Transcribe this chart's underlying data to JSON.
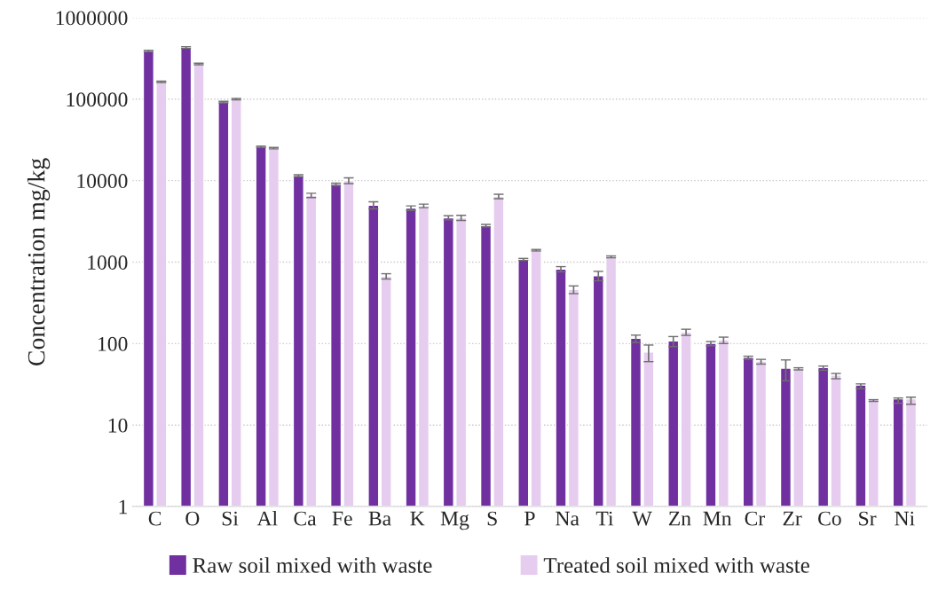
{
  "chart_data": {
    "type": "bar",
    "ylabel": "Concentration mg/kg",
    "log": true,
    "grid": "y",
    "legend": "bottom",
    "categories": [
      "C",
      "O",
      "Si",
      "Al",
      "Ca",
      "Fe",
      "Ba",
      "K",
      "Mg",
      "S",
      "P",
      "Na",
      "Ti",
      "W",
      "Zn",
      "Mn",
      "Cr",
      "Zr",
      "Co",
      "Sr",
      "Ni"
    ],
    "series": [
      {
        "name": "Raw soil mixed with waste",
        "color": "#7030a0",
        "values": [
          390000,
          430000,
          92000,
          26000,
          11500,
          9000,
          5000,
          4600,
          3500,
          2800,
          1080,
          820,
          680,
          115,
          107,
          100,
          67,
          49,
          50,
          30,
          20
        ],
        "errors": [
          8000,
          10000,
          2000,
          500,
          300,
          300,
          500,
          300,
          200,
          100,
          30,
          60,
          90,
          12,
          15,
          6,
          3,
          14,
          3,
          2,
          1.5
        ]
      },
      {
        "name": "Treated soil mixed with waste",
        "color": "#e6cdef",
        "values": [
          163000,
          270000,
          100000,
          25000,
          6600,
          10000,
          670,
          4900,
          3500,
          6400,
          1400,
          460,
          1160,
          78,
          138,
          110,
          60,
          49,
          40,
          20,
          20
        ],
        "errors": [
          3000,
          6000,
          2000,
          500,
          400,
          800,
          50,
          250,
          250,
          400,
          30,
          50,
          30,
          18,
          12,
          10,
          4,
          1.5,
          3,
          0.5,
          2
        ]
      }
    ],
    "ylim": [
      1,
      1000000
    ],
    "yticks": [
      1,
      10,
      100,
      1000,
      10000,
      100000,
      1000000
    ]
  }
}
